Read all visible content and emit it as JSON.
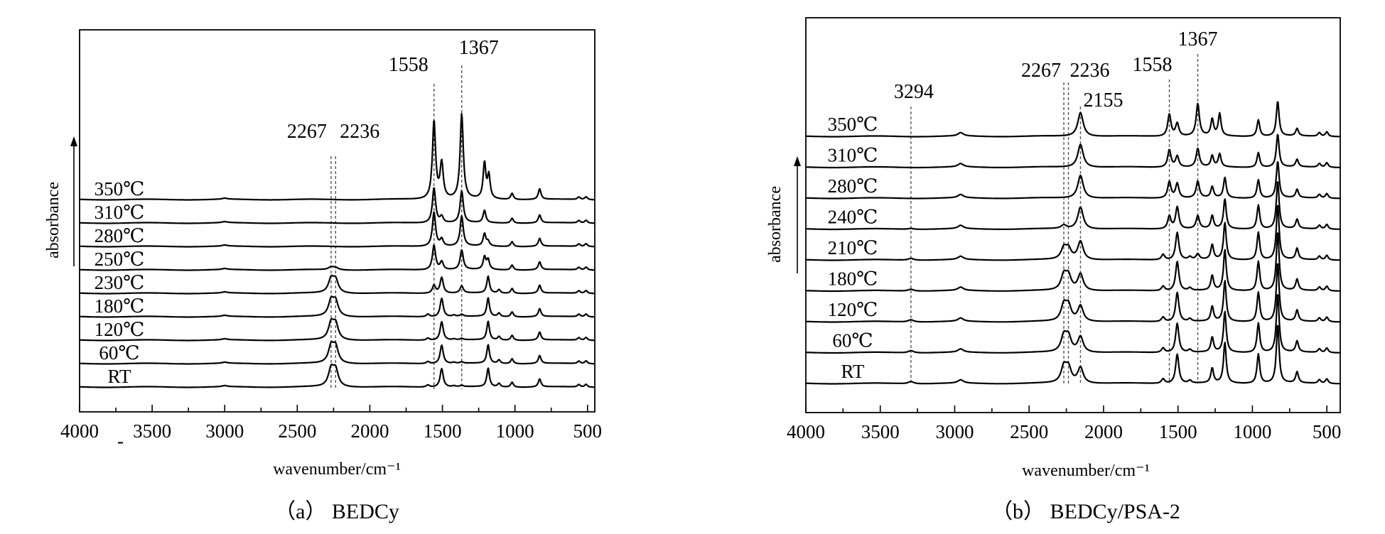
{
  "chart_data": [
    {
      "type": "line",
      "panel": "a",
      "caption": "（a）  BEDCy",
      "xlabel": "wavenumber/cm⁻¹",
      "ylabel": "absorbance",
      "xlim": [
        4000,
        450
      ],
      "x_inverted": true,
      "xticks": [
        4000,
        3500,
        3000,
        2500,
        2000,
        1500,
        1000,
        500
      ],
      "grid": false,
      "y_arrow": true,
      "series": [
        {
          "name": "RT",
          "peaks": [
            [
              3000,
              0.06
            ],
            [
              2267,
              0.95
            ],
            [
              2236,
              0.9
            ],
            [
              1600,
              0.12
            ],
            [
              1505,
              1.05
            ],
            [
              1420,
              0.06
            ],
            [
              1367,
              0.08
            ],
            [
              1185,
              1.05
            ],
            [
              1110,
              0.2
            ],
            [
              1020,
              0.28
            ],
            [
              830,
              0.45
            ],
            [
              560,
              0.14
            ],
            [
              510,
              0.16
            ]
          ]
        },
        {
          "name": "60℃",
          "peaks": [
            [
              3000,
              0.06
            ],
            [
              2267,
              0.92
            ],
            [
              2236,
              0.88
            ],
            [
              1600,
              0.12
            ],
            [
              1505,
              1.05
            ],
            [
              1420,
              0.06
            ],
            [
              1367,
              0.08
            ],
            [
              1185,
              1.05
            ],
            [
              1110,
              0.2
            ],
            [
              1020,
              0.28
            ],
            [
              830,
              0.45
            ],
            [
              560,
              0.14
            ],
            [
              510,
              0.16
            ]
          ]
        },
        {
          "name": "120℃",
          "peaks": [
            [
              3000,
              0.06
            ],
            [
              2267,
              0.9
            ],
            [
              2236,
              0.85
            ],
            [
              1600,
              0.12
            ],
            [
              1505,
              1.05
            ],
            [
              1420,
              0.06
            ],
            [
              1367,
              0.08
            ],
            [
              1185,
              1.05
            ],
            [
              1110,
              0.2
            ],
            [
              1020,
              0.28
            ],
            [
              830,
              0.45
            ],
            [
              560,
              0.14
            ],
            [
              510,
              0.16
            ]
          ]
        },
        {
          "name": "180℃",
          "peaks": [
            [
              3000,
              0.06
            ],
            [
              2267,
              0.85
            ],
            [
              2236,
              0.8
            ],
            [
              1600,
              0.15
            ],
            [
              1505,
              1.05
            ],
            [
              1420,
              0.08
            ],
            [
              1367,
              0.12
            ],
            [
              1185,
              1.05
            ],
            [
              1110,
              0.2
            ],
            [
              1020,
              0.28
            ],
            [
              830,
              0.45
            ],
            [
              560,
              0.14
            ],
            [
              510,
              0.16
            ]
          ]
        },
        {
          "name": "230℃",
          "peaks": [
            [
              3000,
              0.06
            ],
            [
              2267,
              0.75
            ],
            [
              2236,
              0.7
            ],
            [
              1558,
              0.45
            ],
            [
              1505,
              0.9
            ],
            [
              1367,
              0.4
            ],
            [
              1185,
              0.95
            ],
            [
              1110,
              0.2
            ],
            [
              1020,
              0.28
            ],
            [
              830,
              0.45
            ],
            [
              560,
              0.14
            ],
            [
              510,
              0.16
            ]
          ]
        },
        {
          "name": "250℃",
          "peaks": [
            [
              3000,
              0.06
            ],
            [
              2267,
              0.15
            ],
            [
              2236,
              0.12
            ],
            [
              1558,
              1.4
            ],
            [
              1505,
              0.45
            ],
            [
              1367,
              1.1
            ],
            [
              1210,
              0.7
            ],
            [
              1185,
              0.55
            ],
            [
              1020,
              0.28
            ],
            [
              830,
              0.45
            ],
            [
              560,
              0.14
            ],
            [
              510,
              0.16
            ]
          ]
        },
        {
          "name": "280℃",
          "peaks": [
            [
              3000,
              0.06
            ],
            [
              1558,
              1.95
            ],
            [
              1505,
              0.4
            ],
            [
              1367,
              1.7
            ],
            [
              1210,
              0.7
            ],
            [
              1185,
              0.25
            ],
            [
              1020,
              0.28
            ],
            [
              830,
              0.45
            ],
            [
              560,
              0.14
            ],
            [
              510,
              0.16
            ]
          ]
        },
        {
          "name": "310℃",
          "peaks": [
            [
              3000,
              0.06
            ],
            [
              1558,
              2.0
            ],
            [
              1505,
              0.35
            ],
            [
              1367,
              1.8
            ],
            [
              1210,
              0.7
            ],
            [
              1020,
              0.28
            ],
            [
              830,
              0.45
            ],
            [
              560,
              0.14
            ],
            [
              510,
              0.16
            ]
          ]
        },
        {
          "name": "350℃",
          "peaks": [
            [
              3000,
              0.06
            ],
            [
              1558,
              4.4
            ],
            [
              1505,
              2.0
            ],
            [
              1367,
              4.8
            ],
            [
              1210,
              2.0
            ],
            [
              1180,
              1.3
            ],
            [
              1020,
              0.35
            ],
            [
              830,
              0.6
            ],
            [
              560,
              0.14
            ],
            [
              510,
              0.16
            ]
          ]
        }
      ],
      "annotations": [
        {
          "label": "2267",
          "x": 2267
        },
        {
          "label": "2236",
          "x": 2236
        },
        {
          "label": "1558",
          "x": 1558
        },
        {
          "label": "1367",
          "x": 1367
        }
      ]
    },
    {
      "type": "line",
      "panel": "b",
      "caption": "（b）  BEDCy/PSA-2",
      "xlabel": "wavenumber/cm⁻¹",
      "ylabel": "absorbance",
      "xlim": [
        4000,
        410
      ],
      "x_inverted": true,
      "xticks": [
        4000,
        3500,
        3000,
        2500,
        2000,
        1500,
        1000,
        500
      ],
      "grid": false,
      "y_arrow": true,
      "series": [
        {
          "name": "RT",
          "peaks": [
            [
              3294,
              0.12
            ],
            [
              2960,
              0.18
            ],
            [
              2267,
              0.85
            ],
            [
              2236,
              0.8
            ],
            [
              2155,
              0.85
            ],
            [
              1600,
              0.25
            ],
            [
              1505,
              1.6
            ],
            [
              1420,
              0.15
            ],
            [
              1270,
              0.8
            ],
            [
              1185,
              2.2
            ],
            [
              960,
              1.6
            ],
            [
              830,
              3.2
            ],
            [
              700,
              0.6
            ],
            [
              550,
              0.2
            ],
            [
              500,
              0.25
            ]
          ]
        },
        {
          "name": "60℃",
          "peaks": [
            [
              3294,
              0.12
            ],
            [
              2960,
              0.18
            ],
            [
              2267,
              0.85
            ],
            [
              2236,
              0.8
            ],
            [
              2155,
              0.85
            ],
            [
              1600,
              0.25
            ],
            [
              1505,
              1.6
            ],
            [
              1420,
              0.15
            ],
            [
              1270,
              0.8
            ],
            [
              1185,
              2.2
            ],
            [
              960,
              1.6
            ],
            [
              830,
              3.2
            ],
            [
              700,
              0.6
            ],
            [
              550,
              0.2
            ],
            [
              500,
              0.25
            ]
          ]
        },
        {
          "name": "120℃",
          "peaks": [
            [
              3294,
              0.12
            ],
            [
              2960,
              0.18
            ],
            [
              2267,
              0.85
            ],
            [
              2236,
              0.8
            ],
            [
              2155,
              0.85
            ],
            [
              1600,
              0.25
            ],
            [
              1505,
              1.6
            ],
            [
              1420,
              0.15
            ],
            [
              1270,
              0.8
            ],
            [
              1185,
              2.2
            ],
            [
              960,
              1.6
            ],
            [
              830,
              3.2
            ],
            [
              700,
              0.6
            ],
            [
              550,
              0.2
            ],
            [
              500,
              0.25
            ]
          ]
        },
        {
          "name": "180℃",
          "peaks": [
            [
              3294,
              0.1
            ],
            [
              2960,
              0.18
            ],
            [
              2267,
              0.8
            ],
            [
              2236,
              0.75
            ],
            [
              2155,
              0.9
            ],
            [
              1600,
              0.25
            ],
            [
              1505,
              1.6
            ],
            [
              1420,
              0.15
            ],
            [
              1270,
              0.8
            ],
            [
              1185,
              2.2
            ],
            [
              960,
              1.6
            ],
            [
              830,
              3.2
            ],
            [
              700,
              0.6
            ],
            [
              550,
              0.2
            ],
            [
              500,
              0.25
            ]
          ]
        },
        {
          "name": "210℃",
          "peaks": [
            [
              3294,
              0.1
            ],
            [
              2960,
              0.18
            ],
            [
              2267,
              0.6
            ],
            [
              2236,
              0.55
            ],
            [
              2155,
              1.0
            ],
            [
              1600,
              0.3
            ],
            [
              1505,
              1.5
            ],
            [
              1420,
              0.15
            ],
            [
              1367,
              0.3
            ],
            [
              1270,
              0.8
            ],
            [
              1185,
              2.0
            ],
            [
              960,
              1.5
            ],
            [
              830,
              3.0
            ],
            [
              700,
              0.6
            ],
            [
              550,
              0.2
            ],
            [
              500,
              0.25
            ]
          ]
        },
        {
          "name": "240℃",
          "peaks": [
            [
              3294,
              0.05
            ],
            [
              2960,
              0.18
            ],
            [
              2267,
              0.2
            ],
            [
              2155,
              1.2
            ],
            [
              1558,
              0.7
            ],
            [
              1505,
              1.2
            ],
            [
              1367,
              0.7
            ],
            [
              1270,
              0.7
            ],
            [
              1185,
              1.6
            ],
            [
              960,
              1.3
            ],
            [
              830,
              2.6
            ],
            [
              700,
              0.5
            ],
            [
              550,
              0.2
            ],
            [
              500,
              0.25
            ]
          ]
        },
        {
          "name": "280℃",
          "peaks": [
            [
              2960,
              0.18
            ],
            [
              2155,
              1.25
            ],
            [
              1558,
              0.9
            ],
            [
              1505,
              0.8
            ],
            [
              1367,
              0.9
            ],
            [
              1270,
              0.6
            ],
            [
              1185,
              1.1
            ],
            [
              960,
              1.0
            ],
            [
              830,
              2.0
            ],
            [
              700,
              0.45
            ],
            [
              550,
              0.2
            ],
            [
              500,
              0.25
            ]
          ]
        },
        {
          "name": "310℃",
          "peaks": [
            [
              2960,
              0.18
            ],
            [
              2155,
              1.25
            ],
            [
              1558,
              0.95
            ],
            [
              1505,
              0.6
            ],
            [
              1367,
              1.0
            ],
            [
              1270,
              0.6
            ],
            [
              1220,
              0.7
            ],
            [
              960,
              0.8
            ],
            [
              830,
              1.8
            ],
            [
              700,
              0.4
            ],
            [
              550,
              0.2
            ],
            [
              500,
              0.25
            ]
          ]
        },
        {
          "name": "350℃",
          "peaks": [
            [
              2960,
              0.18
            ],
            [
              2155,
              1.3
            ],
            [
              1558,
              1.2
            ],
            [
              1505,
              0.7
            ],
            [
              1367,
              1.75
            ],
            [
              1270,
              0.9
            ],
            [
              1220,
              1.2
            ],
            [
              960,
              0.9
            ],
            [
              830,
              1.9
            ],
            [
              700,
              0.4
            ],
            [
              550,
              0.2
            ],
            [
              500,
              0.25
            ]
          ]
        }
      ],
      "annotations": [
        {
          "label": "3294",
          "x": 3294
        },
        {
          "label": "2267",
          "x": 2267
        },
        {
          "label": "2236",
          "x": 2236
        },
        {
          "label": "2155",
          "x": 2155
        },
        {
          "label": "1558",
          "x": 1558
        },
        {
          "label": "1367",
          "x": 1367
        }
      ]
    }
  ],
  "unit_tick_note": "-"
}
